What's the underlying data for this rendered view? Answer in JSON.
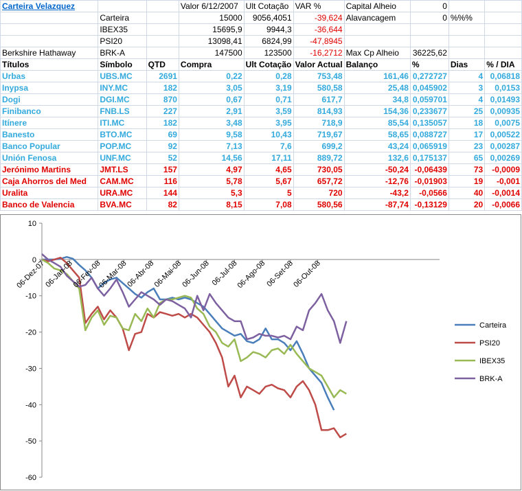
{
  "header": {
    "title": "Carteira Velazquez",
    "valor_label": "Valor 6/12/2007",
    "ult_label": "Ult Cotação",
    "var_label": "VAR %",
    "capital_label": "Capital Alheio",
    "capital_value": "0",
    "alav_label": "Alavancagem",
    "alav_value": "0",
    "alav_unit": "%%%",
    "max_label": "Max Cp Alheio",
    "max_value": "36225,62"
  },
  "benchmarks": [
    {
      "name": "",
      "code": "Carteira",
      "valor": "15000",
      "ult": "9056,4051",
      "var": "-39,624"
    },
    {
      "name": "",
      "code": "IBEX35",
      "valor": "15695,9",
      "ult": "9944,3",
      "var": "-36,644"
    },
    {
      "name": "",
      "code": "PSI20",
      "valor": "13098,41",
      "ult": "6824,99",
      "var": "-47,8945"
    },
    {
      "name": "Berkshire Hathaway",
      "code": "BRK-A",
      "valor": "147500",
      "ult": "123500",
      "var": "-16,2712"
    }
  ],
  "columns": [
    "Títulos",
    "Símbolo",
    "QTD",
    "Compra",
    "Ult Cotação",
    "Valor Actual",
    "Balanço",
    "%",
    "Dias",
    "% / DIA"
  ],
  "rows": [
    {
      "t": "Urbas",
      "s": "UBS.MC",
      "q": "2691",
      "c": "0,22",
      "u": "0,28",
      "v": "753,48",
      "b": "161,46",
      "p": "0,272727",
      "d": "4",
      "pd": "0,06818",
      "dir": "up"
    },
    {
      "t": "Inypsa",
      "s": "INY.MC",
      "q": "182",
      "c": "3,05",
      "u": "3,19",
      "v": "580,58",
      "b": "25,48",
      "p": "0,045902",
      "d": "3",
      "pd": "0,0153",
      "dir": "up"
    },
    {
      "t": "Dogi",
      "s": "DGI.MC",
      "q": "870",
      "c": "0,67",
      "u": "0,71",
      "v": "617,7",
      "b": "34,8",
      "p": "0,059701",
      "d": "4",
      "pd": "0,01493",
      "dir": "up"
    },
    {
      "t": "Finibanco",
      "s": "FNB.LS",
      "q": "227",
      "c": "2,91",
      "u": "3,59",
      "v": "814,93",
      "b": "154,36",
      "p": "0,233677",
      "d": "25",
      "pd": "0,00935",
      "dir": "up"
    },
    {
      "t": "Itínere",
      "s": "ITI.MC",
      "q": "182",
      "c": "3,48",
      "u": "3,95",
      "v": "718,9",
      "b": "85,54",
      "p": "0,135057",
      "d": "18",
      "pd": "0,0075",
      "dir": "up"
    },
    {
      "t": "Banesto",
      "s": "BTO.MC",
      "q": "69",
      "c": "9,58",
      "u": "10,43",
      "v": "719,67",
      "b": "58,65",
      "p": "0,088727",
      "d": "17",
      "pd": "0,00522",
      "dir": "up"
    },
    {
      "t": "Banco Popular",
      "s": "POP.MC",
      "q": "92",
      "c": "7,13",
      "u": "7,6",
      "v": "699,2",
      "b": "43,24",
      "p": "0,065919",
      "d": "23",
      "pd": "0,00287",
      "dir": "up"
    },
    {
      "t": "Unión Fenosa",
      "s": "UNF.MC",
      "q": "52",
      "c": "14,56",
      "u": "17,11",
      "v": "889,72",
      "b": "132,6",
      "p": "0,175137",
      "d": "65",
      "pd": "0,00269",
      "dir": "up"
    },
    {
      "t": "Jerónimo Martins",
      "s": "JMT.LS",
      "q": "157",
      "c": "4,97",
      "u": "4,65",
      "v": "730,05",
      "b": "-50,24",
      "p": "-0,06439",
      "d": "73",
      "pd": "-0,0009",
      "dir": "down"
    },
    {
      "t": "Caja Ahorros del Med",
      "s": "CAM.MC",
      "q": "116",
      "c": "5,78",
      "u": "5,67",
      "v": "657,72",
      "b": "-12,76",
      "p": "-0,01903",
      "d": "19",
      "pd": "-0,001",
      "dir": "down"
    },
    {
      "t": "Uralita",
      "s": "URA.MC",
      "q": "144",
      "c": "5,3",
      "u": "5",
      "v": "720",
      "b": "-43,2",
      "p": "-0,0566",
      "d": "40",
      "pd": "-0,0014",
      "dir": "down"
    },
    {
      "t": "Banco de Valencia",
      "s": "BVA.MC",
      "q": "82",
      "c": "8,15",
      "u": "7,08",
      "v": "580,56",
      "b": "-87,74",
      "p": "-0,13129",
      "d": "20",
      "pd": "-0,0066",
      "dir": "down"
    }
  ],
  "chart_data": {
    "type": "line",
    "ylim": [
      -60,
      10
    ],
    "yticks": [
      10,
      0,
      -10,
      -20,
      -30,
      -40,
      -50,
      -60
    ],
    "xlim": [
      0,
      64
    ],
    "x_tick_labels": [
      "06-Dez-07",
      "06-Jan-08",
      "06-Fev-08",
      "06-Mar-08",
      "06-Abr-08",
      "06-Mai-08",
      "06-Jun-08",
      "06-Jul-08",
      "06-Ago-08",
      "06-Set-08",
      "06-Out-08"
    ],
    "x_tick_index": [
      0,
      4.5,
      9,
      13.2,
      17.6,
      22,
      26.5,
      31,
      35.5,
      40,
      44.4
    ],
    "legend_position": "right",
    "series": [
      {
        "name": "Carteira",
        "color": "#4a7ebb",
        "x": [
          0,
          1,
          2,
          3,
          4,
          5,
          6,
          7,
          8,
          9,
          10,
          11,
          12,
          13,
          14,
          15,
          16,
          17,
          18,
          19,
          20,
          21,
          22,
          23,
          24,
          25,
          26,
          27,
          28,
          29,
          30,
          31,
          32,
          33,
          34,
          35,
          36,
          37,
          38,
          39,
          40,
          41,
          42,
          43,
          44,
          45,
          46,
          47
        ],
        "values": [
          0,
          0,
          0,
          0.2,
          0.7,
          0.2,
          -1.5,
          -3,
          -5,
          -8,
          -6.5,
          -5.5,
          -5,
          -6.5,
          -8,
          -9.5,
          -10.5,
          -9,
          -8,
          -11,
          -11,
          -10.5,
          -11,
          -10.5,
          -11,
          -12,
          -13,
          -15,
          -17,
          -19,
          -20,
          -21,
          -20.5,
          -22.5,
          -23,
          -22,
          -19,
          -22,
          -22,
          -23,
          -25,
          -22.5,
          -26,
          -30,
          -32,
          -34,
          -38,
          -41.5
        ]
      },
      {
        "name": "PSI20",
        "color": "#be4b48",
        "x": [
          0,
          1,
          2,
          3,
          4,
          5,
          6,
          7,
          8,
          9,
          10,
          11,
          12,
          13,
          14,
          15,
          16,
          17,
          18,
          19,
          20,
          21,
          22,
          23,
          24,
          25,
          26,
          27,
          28,
          29,
          30,
          31,
          32,
          33,
          34,
          35,
          36,
          37,
          38,
          39,
          40,
          41,
          42,
          43,
          44,
          45,
          46,
          47,
          48,
          49
        ],
        "values": [
          0,
          -0.5,
          0,
          0.5,
          -1,
          -3,
          -5,
          -17.5,
          -15,
          -13,
          -16.5,
          -14,
          -16,
          -19,
          -25,
          -20.5,
          -20,
          -15,
          -16,
          -14.5,
          -15,
          -15.5,
          -15,
          -16,
          -15,
          -16,
          -18,
          -20,
          -23,
          -27,
          -35,
          -32,
          -38,
          -35,
          -36,
          -37,
          -35,
          -34.5,
          -35.5,
          -36,
          -38,
          -35,
          -33.5,
          -36,
          -40,
          -47,
          -47,
          -46.5,
          -49,
          -48
        ]
      },
      {
        "name": "IBEX35",
        "color": "#98b954",
        "x": [
          0,
          1,
          2,
          3,
          4,
          5,
          6,
          7,
          8,
          9,
          10,
          11,
          12,
          13,
          14,
          15,
          16,
          17,
          18,
          19,
          20,
          21,
          22,
          23,
          24,
          25,
          26,
          27,
          28,
          29,
          30,
          31,
          32,
          33,
          34,
          35,
          36,
          37,
          38,
          39,
          40,
          41,
          42,
          43,
          44,
          45,
          46,
          47,
          48,
          49
        ],
        "values": [
          0,
          -1,
          -2.5,
          -3,
          -4,
          -6,
          -8,
          -19.5,
          -16,
          -14,
          -18,
          -15.5,
          -16,
          -19,
          -19.5,
          -15,
          -17,
          -13.5,
          -16,
          -12,
          -11,
          -11,
          -10.5,
          -10,
          -10.5,
          -13.5,
          -15,
          -18.5,
          -20,
          -23,
          -24,
          -22,
          -28,
          -27,
          -25.5,
          -26,
          -27,
          -25,
          -24.5,
          -26,
          -23.5,
          -26,
          -28,
          -30,
          -31,
          -32,
          -35,
          -38,
          -36,
          -37
        ]
      },
      {
        "name": "BRK-A",
        "color": "#7d60a0",
        "x": [
          0,
          1,
          2,
          3,
          4,
          5,
          6,
          7,
          8,
          9,
          10,
          11,
          12,
          13,
          14,
          15,
          16,
          17,
          18,
          19,
          20,
          21,
          22,
          23,
          24,
          25,
          26,
          27,
          28,
          29,
          30,
          31,
          32,
          33,
          34,
          35,
          36,
          37,
          38,
          39,
          40,
          41,
          42,
          43,
          44,
          45,
          46,
          47,
          48,
          49
        ],
        "values": [
          1.5,
          0,
          -1,
          -2,
          -4.5,
          -6,
          -7.5,
          -7,
          -5,
          -8,
          -10,
          -8,
          -5.5,
          -9,
          -13,
          -11,
          -9,
          -10,
          -11,
          -12.5,
          -11,
          -11.5,
          -12.5,
          -13.5,
          -16,
          -10,
          -14,
          -9.5,
          -12,
          -14,
          -16,
          -17,
          -17,
          -22,
          -21.5,
          -20.5,
          -21,
          -21,
          -21.5,
          -21,
          -22,
          -18.5,
          -19.5,
          -14,
          -12,
          -9.5,
          -14,
          -17,
          -23,
          -17
        ]
      }
    ]
  }
}
